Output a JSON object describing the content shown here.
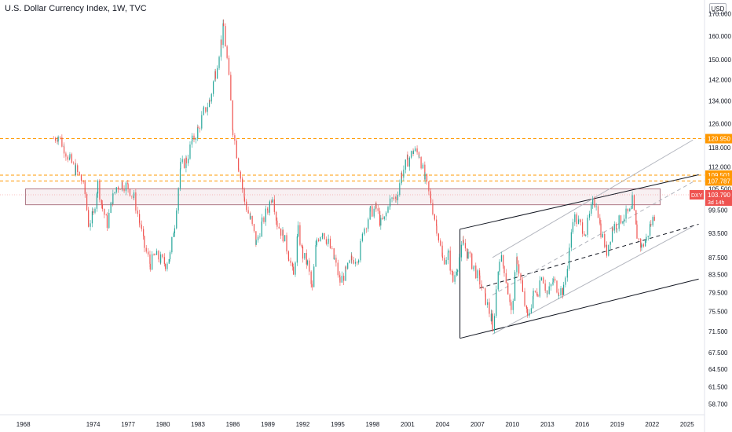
{
  "header": {
    "title": "U.S. Dollar Currency Index, 1W, TVC",
    "currency": "USD"
  },
  "colors": {
    "up": "#26a69a",
    "down": "#ef5350",
    "level_line": "#ff9800",
    "level_label": "#ff9800",
    "price_label": "#ef5350",
    "zone_border": "#9c5a6a",
    "zone_fill": "#f3e4e8"
  },
  "chart_data": {
    "type": "candlestick",
    "title": "U.S. Dollar Currency Index, 1W, TVC",
    "y_scale": "log",
    "ylim": [
      57.0,
      172.0
    ],
    "xlim": [
      1966.0,
      2026.5
    ],
    "y_ticks": [
      "58.700",
      "61.500",
      "64.500",
      "67.500",
      "71.500",
      "75.500",
      "79.500",
      "83.500",
      "87.500",
      "93.500",
      "99.500",
      "105.500",
      "112.000",
      "118.000",
      "126.000",
      "134.000",
      "142.000",
      "150.000",
      "160.000",
      "170.000"
    ],
    "x_ticks": [
      "1968",
      "1974",
      "1977",
      "1980",
      "1983",
      "1986",
      "1989",
      "1992",
      "1995",
      "1998",
      "2001",
      "2004",
      "2007",
      "2010",
      "2013",
      "2016",
      "2019",
      "2022",
      "2025"
    ],
    "price_path": [
      [
        1970.6,
        121
      ],
      [
        1971.0,
        122
      ],
      [
        1971.5,
        118
      ],
      [
        1972.0,
        114
      ],
      [
        1972.5,
        111
      ],
      [
        1973.0,
        108
      ],
      [
        1973.3,
        104
      ],
      [
        1973.6,
        96
      ],
      [
        1974.0,
        98
      ],
      [
        1974.4,
        107
      ],
      [
        1974.8,
        100
      ],
      [
        1975.2,
        96
      ],
      [
        1975.7,
        103
      ],
      [
        1976.0,
        106
      ],
      [
        1976.5,
        107
      ],
      [
        1977.0,
        106
      ],
      [
        1977.5,
        103
      ],
      [
        1978.0,
        96
      ],
      [
        1978.4,
        90
      ],
      [
        1978.9,
        86
      ],
      [
        1979.3,
        88
      ],
      [
        1979.8,
        87
      ],
      [
        1980.2,
        86
      ],
      [
        1980.6,
        88
      ],
      [
        1981.0,
        96
      ],
      [
        1981.5,
        112
      ],
      [
        1982.0,
        114
      ],
      [
        1982.5,
        120
      ],
      [
        1983.0,
        124
      ],
      [
        1983.5,
        130
      ],
      [
        1984.0,
        134
      ],
      [
        1984.5,
        145
      ],
      [
        1985.0,
        158
      ],
      [
        1985.2,
        164
      ],
      [
        1985.5,
        150
      ],
      [
        1986.0,
        124
      ],
      [
        1986.5,
        112
      ],
      [
        1987.0,
        102
      ],
      [
        1987.5,
        97
      ],
      [
        1988.0,
        91
      ],
      [
        1988.5,
        96
      ],
      [
        1989.0,
        100
      ],
      [
        1989.4,
        104
      ],
      [
        1989.8,
        96
      ],
      [
        1990.3,
        93
      ],
      [
        1990.8,
        88
      ],
      [
        1991.2,
        83
      ],
      [
        1991.6,
        94
      ],
      [
        1992.0,
        88
      ],
      [
        1992.4,
        86
      ],
      [
        1992.8,
        80
      ],
      [
        1993.2,
        92
      ],
      [
        1993.7,
        94
      ],
      [
        1994.2,
        91
      ],
      [
        1994.7,
        87
      ],
      [
        1995.2,
        82
      ],
      [
        1995.7,
        84
      ],
      [
        1996.2,
        87
      ],
      [
        1996.8,
        88
      ],
      [
        1997.3,
        95
      ],
      [
        1997.8,
        99
      ],
      [
        1998.3,
        100
      ],
      [
        1998.7,
        96
      ],
      [
        1999.0,
        97
      ],
      [
        1999.5,
        102
      ],
      [
        2000.0,
        103
      ],
      [
        2000.5,
        110
      ],
      [
        2001.0,
        114
      ],
      [
        2001.5,
        117
      ],
      [
        2002.0,
        116
      ],
      [
        2002.5,
        108
      ],
      [
        2003.0,
        102
      ],
      [
        2003.5,
        95
      ],
      [
        2004.0,
        87
      ],
      [
        2004.5,
        88
      ],
      [
        2004.9,
        82
      ],
      [
        2005.3,
        86
      ],
      [
        2005.8,
        91
      ],
      [
        2006.2,
        88
      ],
      [
        2006.7,
        85
      ],
      [
        2007.2,
        82
      ],
      [
        2007.7,
        78
      ],
      [
        2008.2,
        74
      ],
      [
        2008.3,
        71
      ],
      [
        2008.9,
        88
      ],
      [
        2009.3,
        85
      ],
      [
        2009.9,
        75
      ],
      [
        2010.4,
        87
      ],
      [
        2010.9,
        79
      ],
      [
        2011.3,
        74
      ],
      [
        2011.8,
        79
      ],
      [
        2012.2,
        80
      ],
      [
        2012.5,
        84
      ],
      [
        2013.0,
        79
      ],
      [
        2013.5,
        82
      ],
      [
        2014.0,
        80
      ],
      [
        2014.4,
        80
      ],
      [
        2014.9,
        89
      ],
      [
        2015.2,
        98
      ],
      [
        2015.7,
        96
      ],
      [
        2016.3,
        94
      ],
      [
        2016.9,
        101
      ],
      [
        2017.2,
        102
      ],
      [
        2017.6,
        94
      ],
      [
        2018.1,
        89
      ],
      [
        2018.6,
        95
      ],
      [
        2019.0,
        96
      ],
      [
        2019.6,
        98
      ],
      [
        2020.2,
        99
      ],
      [
        2020.3,
        102
      ],
      [
        2020.7,
        93
      ],
      [
        2021.1,
        90
      ],
      [
        2021.5,
        92
      ],
      [
        2021.9,
        96
      ],
      [
        2022.2,
        98
      ],
      [
        2022.35,
        103.79
      ]
    ],
    "horizontal_levels": [
      {
        "price": 120.95,
        "label": "120.950"
      },
      {
        "price": 109.501,
        "label": "109.501"
      },
      {
        "price": 107.787,
        "label": "107.787"
      }
    ],
    "zone": {
      "from_x": 1968.2,
      "to_x": 2022.7,
      "top": 105.5,
      "bottom": 101.0
    },
    "current_price": {
      "symbol": "DXY",
      "price": 103.79,
      "label": "103.790",
      "countdown": "3d 14h"
    },
    "trendlines": [
      {
        "style": "solid",
        "color": "#131722",
        "points": [
          [
            2005.5,
            94.5
          ],
          [
            2026.0,
            109.6
          ]
        ]
      },
      {
        "style": "solid",
        "color": "#131722",
        "points": [
          [
            2005.5,
            70.2
          ],
          [
            2026.0,
            82.5
          ]
        ]
      },
      {
        "style": "solid",
        "color": "#131722",
        "points": [
          [
            2005.5,
            70.2
          ],
          [
            2005.5,
            94.5
          ]
        ]
      },
      {
        "style": "dashed",
        "color": "#131722",
        "points": [
          [
            2007.2,
            80.5
          ],
          [
            2026.0,
            95.8
          ]
        ]
      },
      {
        "style": "solid",
        "color": "#b2b5be",
        "points": [
          [
            2008.3,
            87.5
          ],
          [
            2025.5,
            120.5
          ]
        ]
      },
      {
        "style": "solid",
        "color": "#b2b5be",
        "points": [
          [
            2008.3,
            71.0
          ],
          [
            2025.5,
            95.2
          ]
        ]
      },
      {
        "style": "dashed",
        "color": "#b2b5be",
        "points": [
          [
            2008.3,
            79.0
          ],
          [
            2025.5,
            107.5
          ]
        ]
      }
    ]
  }
}
